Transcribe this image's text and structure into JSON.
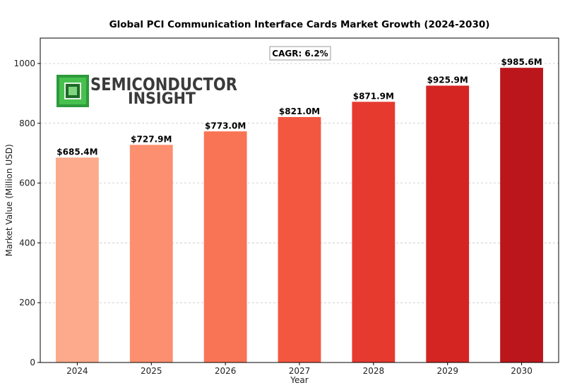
{
  "chart_data": {
    "type": "bar",
    "title": "Global PCI Communication Interface Cards Market Growth (2024-2030)",
    "xlabel": "Year",
    "ylabel": "Market Value (Million USD)",
    "categories": [
      "2024",
      "2025",
      "2026",
      "2027",
      "2028",
      "2029",
      "2030"
    ],
    "values": [
      685.4,
      727.9,
      773.0,
      821.0,
      871.9,
      925.9,
      985.6
    ],
    "value_labels": [
      "$685.4M",
      "$727.9M",
      "$773.0M",
      "$821.0M",
      "$871.9M",
      "$925.9M",
      "$985.6M"
    ],
    "bar_colors": [
      "#fcaa8b",
      "#fc8f6f",
      "#f97355",
      "#f3573f",
      "#e63a2e",
      "#d42522",
      "#ba161c"
    ],
    "ylim": [
      0,
      1085
    ],
    "yticks": [
      0,
      200,
      400,
      600,
      800,
      1000
    ],
    "grid": true,
    "annotation": "CAGR: 6.2%"
  },
  "logo": {
    "line1": "SEMICONDUCTOR",
    "line2": "INSIGHT"
  }
}
